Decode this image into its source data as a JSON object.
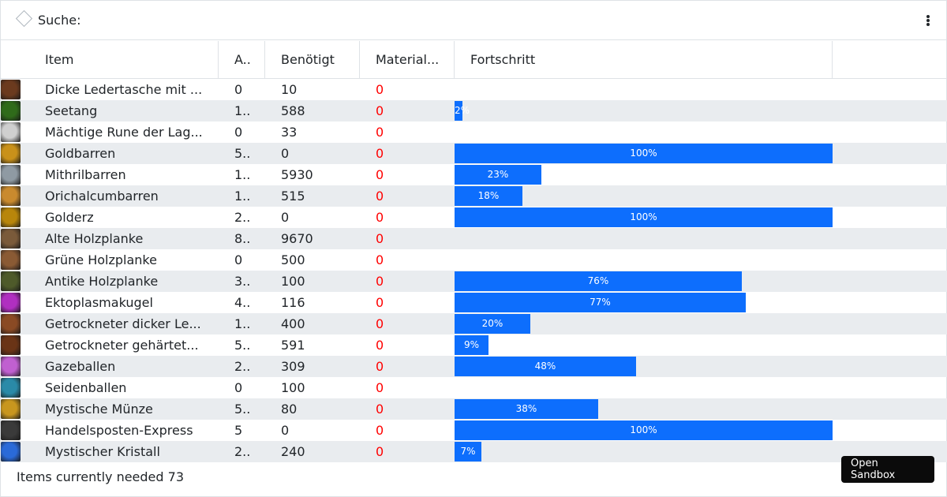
{
  "search": {
    "label": "Suche:",
    "value": ""
  },
  "columns": [
    "Item",
    "A..",
    "Benötigt",
    "Material...",
    "Fortschritt"
  ],
  "rows": [
    {
      "name": "Dicke Ledertasche mit ...",
      "a": "0",
      "needed": "10",
      "material": "0",
      "progress": 0,
      "progress_label": "",
      "icon": "leather-bag-icon",
      "icon_color": "#6b3a1e"
    },
    {
      "name": "Seetang",
      "a": "1..",
      "needed": "588",
      "material": "0",
      "progress": 2,
      "progress_label": "2%",
      "icon": "seaweed-icon",
      "icon_color": "#2f6b1a"
    },
    {
      "name": "Mächtige Rune der Lag...",
      "a": "0",
      "needed": "33",
      "material": "0",
      "progress": 0,
      "progress_label": "",
      "icon": "rune-icon",
      "icon_color": "#cfcfcf"
    },
    {
      "name": "Goldbarren",
      "a": "5..",
      "needed": "0",
      "material": "0",
      "progress": 100,
      "progress_label": "100%",
      "icon": "gold-bar-icon",
      "icon_color": "#c9911a"
    },
    {
      "name": "Mithrilbarren",
      "a": "1..",
      "needed": "5930",
      "material": "0",
      "progress": 23,
      "progress_label": "23%",
      "icon": "mithril-bar-icon",
      "icon_color": "#8f9aa3"
    },
    {
      "name": "Orichalcumbarren",
      "a": "1..",
      "needed": "515",
      "material": "0",
      "progress": 18,
      "progress_label": "18%",
      "icon": "orichalcum-bar-icon",
      "icon_color": "#c98a2e"
    },
    {
      "name": "Golderz",
      "a": "2..",
      "needed": "0",
      "material": "0",
      "progress": 100,
      "progress_label": "100%",
      "icon": "gold-ore-icon",
      "icon_color": "#b8860b"
    },
    {
      "name": "Alte Holzplanke",
      "a": "8..",
      "needed": "9670",
      "material": "0",
      "progress": 0,
      "progress_label": "",
      "icon": "old-plank-icon",
      "icon_color": "#7a5a3a"
    },
    {
      "name": "Grüne Holzplanke",
      "a": "0",
      "needed": "500",
      "material": "0",
      "progress": 0,
      "progress_label": "",
      "icon": "green-plank-icon",
      "icon_color": "#8a5a34"
    },
    {
      "name": "Antike Holzplanke",
      "a": "3..",
      "needed": "100",
      "material": "0",
      "progress": 76,
      "progress_label": "76%",
      "icon": "ancient-plank-icon",
      "icon_color": "#4e5a2a"
    },
    {
      "name": "Ektoplasmakugel",
      "a": "4..",
      "needed": "116",
      "material": "0",
      "progress": 77,
      "progress_label": "77%",
      "icon": "ectoplasm-icon",
      "icon_color": "#b02fc0"
    },
    {
      "name": "Getrockneter dicker Le...",
      "a": "1..",
      "needed": "400",
      "material": "0",
      "progress": 20,
      "progress_label": "20%",
      "icon": "dried-leather-icon",
      "icon_color": "#8a4a24"
    },
    {
      "name": "Getrockneter gehärtet...",
      "a": "5..",
      "needed": "591",
      "material": "0",
      "progress": 9,
      "progress_label": "9%",
      "icon": "hardened-leather-icon",
      "icon_color": "#6a3416"
    },
    {
      "name": "Gazeballen",
      "a": "2..",
      "needed": "309",
      "material": "0",
      "progress": 48,
      "progress_label": "48%",
      "icon": "gauze-bolt-icon",
      "icon_color": "#c060d0"
    },
    {
      "name": "Seidenballen",
      "a": "0",
      "needed": "100",
      "material": "0",
      "progress": 0,
      "progress_label": "",
      "icon": "silk-bolt-icon",
      "icon_color": "#2a8aa8"
    },
    {
      "name": "Mystische Münze",
      "a": "5..",
      "needed": "80",
      "material": "0",
      "progress": 38,
      "progress_label": "38%",
      "icon": "mystic-coin-icon",
      "icon_color": "#c8961e"
    },
    {
      "name": "Handelsposten-Express",
      "a": "5",
      "needed": "0",
      "material": "0",
      "progress": 100,
      "progress_label": "100%",
      "icon": "trading-post-icon",
      "icon_color": "#3a3a3a"
    },
    {
      "name": "Mystischer Kristall",
      "a": "2..",
      "needed": "240",
      "material": "0",
      "progress": 7,
      "progress_label": "7%",
      "icon": "mystic-crystal-icon",
      "icon_color": "#2a6ad8"
    }
  ],
  "footer": {
    "text": "Items currently needed 73"
  },
  "sandbox_button": "Open Sandbox",
  "colors": {
    "progress_bar": "#0d6efd",
    "material_value": "#ff0000",
    "stripe": "#e9ecef"
  }
}
